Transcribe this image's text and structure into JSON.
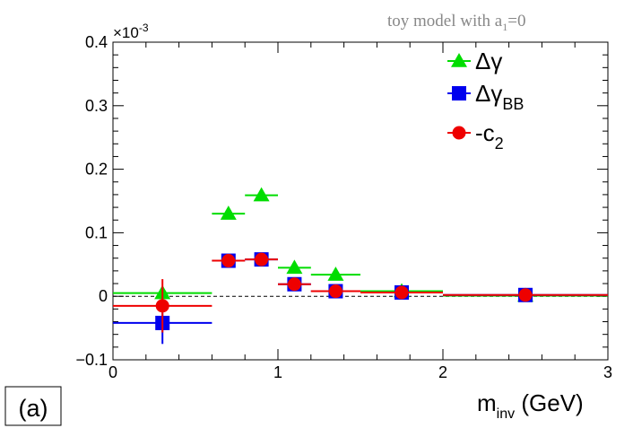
{
  "chart_data": {
    "type": "scatter",
    "title": "",
    "annotation": {
      "main": "toy model with a",
      "sub": "1",
      "tail": "=0"
    },
    "panel_label": "(a)",
    "xlabel": {
      "main": "m",
      "sub": "inv",
      "tail": " (GeV)"
    },
    "ylabel": "",
    "xlim": [
      0,
      3
    ],
    "ylim": [
      -0.1,
      0.4
    ],
    "y_multiplier": "×10",
    "y_multiplier_exp": "-3",
    "xticks": [
      0,
      1,
      2,
      3
    ],
    "xtick_labels": [
      "0",
      "1",
      "2",
      "3"
    ],
    "yticks": [
      -0.1,
      0,
      0.1,
      0.2,
      0.3,
      0.4
    ],
    "ytick_labels": [
      "−0.1",
      "0",
      "0.1",
      "0.2",
      "0.3",
      "0.4"
    ],
    "zero_line": true,
    "legend_position": "top-right",
    "series": [
      {
        "name": "Δγ",
        "name_sub": "",
        "marker": "triangle",
        "color": "#00dd00",
        "points": [
          {
            "x": 0.3,
            "y": 0.005,
            "xerr": 0.3,
            "yerr": 0.003
          },
          {
            "x": 0.7,
            "y": 0.13,
            "xerr": 0.1,
            "yerr": 0.003
          },
          {
            "x": 0.9,
            "y": 0.159,
            "xerr": 0.1,
            "yerr": 0.003
          },
          {
            "x": 1.1,
            "y": 0.045,
            "xerr": 0.1,
            "yerr": 0.003
          },
          {
            "x": 1.35,
            "y": 0.034,
            "xerr": 0.15,
            "yerr": 0.003
          },
          {
            "x": 1.75,
            "y": 0.008,
            "xerr": 0.25,
            "yerr": 0.002
          },
          {
            "x": 2.5,
            "y": 0.001,
            "xerr": 0.5,
            "yerr": 0.002
          }
        ]
      },
      {
        "name": "Δγ",
        "name_sub": "BB",
        "marker": "square",
        "color": "#0000ee",
        "points": [
          {
            "x": 0.3,
            "y": -0.042,
            "xerr": 0.3,
            "yerr": 0.033
          },
          {
            "x": 0.7,
            "y": 0.056,
            "xerr": 0.1,
            "yerr": 0.005
          },
          {
            "x": 0.9,
            "y": 0.058,
            "xerr": 0.1,
            "yerr": 0.005
          },
          {
            "x": 1.1,
            "y": 0.019,
            "xerr": 0.1,
            "yerr": 0.005
          },
          {
            "x": 1.35,
            "y": 0.008,
            "xerr": 0.15,
            "yerr": 0.005
          },
          {
            "x": 1.75,
            "y": 0.006,
            "xerr": 0.25,
            "yerr": 0.004
          },
          {
            "x": 2.5,
            "y": 0.002,
            "xerr": 0.5,
            "yerr": 0.004
          }
        ]
      },
      {
        "name": "-c",
        "name_sub": "2",
        "marker": "circle",
        "color": "#ee0000",
        "points": [
          {
            "x": 0.3,
            "y": -0.015,
            "xerr": 0.3,
            "yerr": 0.042
          },
          {
            "x": 0.7,
            "y": 0.056,
            "xerr": 0.1,
            "yerr": 0.006
          },
          {
            "x": 0.9,
            "y": 0.058,
            "xerr": 0.1,
            "yerr": 0.006
          },
          {
            "x": 1.1,
            "y": 0.019,
            "xerr": 0.1,
            "yerr": 0.006
          },
          {
            "x": 1.35,
            "y": 0.008,
            "xerr": 0.15,
            "yerr": 0.006
          },
          {
            "x": 1.75,
            "y": 0.006,
            "xerr": 0.25,
            "yerr": 0.005
          },
          {
            "x": 2.5,
            "y": 0.002,
            "xerr": 0.5,
            "yerr": 0.005
          }
        ]
      }
    ]
  }
}
